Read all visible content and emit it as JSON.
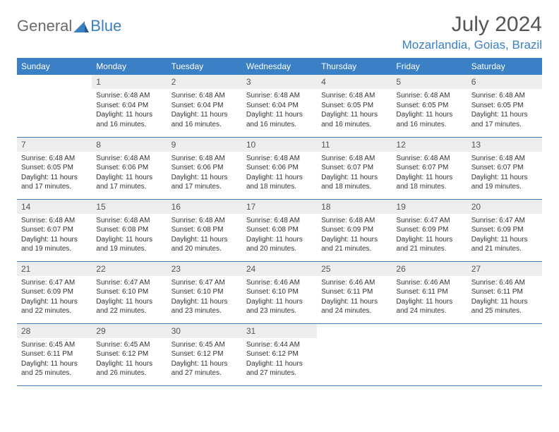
{
  "logo": {
    "text1": "General",
    "text2": "Blue"
  },
  "title": "July 2024",
  "location": "Mozarlandia, Goias, Brazil",
  "colors": {
    "header_bg": "#3b7fc4",
    "header_text": "#ffffff",
    "daynum_bg": "#eeeeee",
    "border": "#3b7fc4",
    "title_color": "#555555",
    "location_color": "#3b7fc4"
  },
  "weekdays": [
    "Sunday",
    "Monday",
    "Tuesday",
    "Wednesday",
    "Thursday",
    "Friday",
    "Saturday"
  ],
  "weeks": [
    [
      null,
      {
        "n": "1",
        "sr": "Sunrise: 6:48 AM",
        "ss": "Sunset: 6:04 PM",
        "dl": "Daylight: 11 hours and 16 minutes."
      },
      {
        "n": "2",
        "sr": "Sunrise: 6:48 AM",
        "ss": "Sunset: 6:04 PM",
        "dl": "Daylight: 11 hours and 16 minutes."
      },
      {
        "n": "3",
        "sr": "Sunrise: 6:48 AM",
        "ss": "Sunset: 6:04 PM",
        "dl": "Daylight: 11 hours and 16 minutes."
      },
      {
        "n": "4",
        "sr": "Sunrise: 6:48 AM",
        "ss": "Sunset: 6:05 PM",
        "dl": "Daylight: 11 hours and 16 minutes."
      },
      {
        "n": "5",
        "sr": "Sunrise: 6:48 AM",
        "ss": "Sunset: 6:05 PM",
        "dl": "Daylight: 11 hours and 16 minutes."
      },
      {
        "n": "6",
        "sr": "Sunrise: 6:48 AM",
        "ss": "Sunset: 6:05 PM",
        "dl": "Daylight: 11 hours and 17 minutes."
      }
    ],
    [
      {
        "n": "7",
        "sr": "Sunrise: 6:48 AM",
        "ss": "Sunset: 6:05 PM",
        "dl": "Daylight: 11 hours and 17 minutes."
      },
      {
        "n": "8",
        "sr": "Sunrise: 6:48 AM",
        "ss": "Sunset: 6:06 PM",
        "dl": "Daylight: 11 hours and 17 minutes."
      },
      {
        "n": "9",
        "sr": "Sunrise: 6:48 AM",
        "ss": "Sunset: 6:06 PM",
        "dl": "Daylight: 11 hours and 17 minutes."
      },
      {
        "n": "10",
        "sr": "Sunrise: 6:48 AM",
        "ss": "Sunset: 6:06 PM",
        "dl": "Daylight: 11 hours and 18 minutes."
      },
      {
        "n": "11",
        "sr": "Sunrise: 6:48 AM",
        "ss": "Sunset: 6:07 PM",
        "dl": "Daylight: 11 hours and 18 minutes."
      },
      {
        "n": "12",
        "sr": "Sunrise: 6:48 AM",
        "ss": "Sunset: 6:07 PM",
        "dl": "Daylight: 11 hours and 18 minutes."
      },
      {
        "n": "13",
        "sr": "Sunrise: 6:48 AM",
        "ss": "Sunset: 6:07 PM",
        "dl": "Daylight: 11 hours and 19 minutes."
      }
    ],
    [
      {
        "n": "14",
        "sr": "Sunrise: 6:48 AM",
        "ss": "Sunset: 6:07 PM",
        "dl": "Daylight: 11 hours and 19 minutes."
      },
      {
        "n": "15",
        "sr": "Sunrise: 6:48 AM",
        "ss": "Sunset: 6:08 PM",
        "dl": "Daylight: 11 hours and 19 minutes."
      },
      {
        "n": "16",
        "sr": "Sunrise: 6:48 AM",
        "ss": "Sunset: 6:08 PM",
        "dl": "Daylight: 11 hours and 20 minutes."
      },
      {
        "n": "17",
        "sr": "Sunrise: 6:48 AM",
        "ss": "Sunset: 6:08 PM",
        "dl": "Daylight: 11 hours and 20 minutes."
      },
      {
        "n": "18",
        "sr": "Sunrise: 6:48 AM",
        "ss": "Sunset: 6:09 PM",
        "dl": "Daylight: 11 hours and 21 minutes."
      },
      {
        "n": "19",
        "sr": "Sunrise: 6:47 AM",
        "ss": "Sunset: 6:09 PM",
        "dl": "Daylight: 11 hours and 21 minutes."
      },
      {
        "n": "20",
        "sr": "Sunrise: 6:47 AM",
        "ss": "Sunset: 6:09 PM",
        "dl": "Daylight: 11 hours and 21 minutes."
      }
    ],
    [
      {
        "n": "21",
        "sr": "Sunrise: 6:47 AM",
        "ss": "Sunset: 6:09 PM",
        "dl": "Daylight: 11 hours and 22 minutes."
      },
      {
        "n": "22",
        "sr": "Sunrise: 6:47 AM",
        "ss": "Sunset: 6:10 PM",
        "dl": "Daylight: 11 hours and 22 minutes."
      },
      {
        "n": "23",
        "sr": "Sunrise: 6:47 AM",
        "ss": "Sunset: 6:10 PM",
        "dl": "Daylight: 11 hours and 23 minutes."
      },
      {
        "n": "24",
        "sr": "Sunrise: 6:46 AM",
        "ss": "Sunset: 6:10 PM",
        "dl": "Daylight: 11 hours and 23 minutes."
      },
      {
        "n": "25",
        "sr": "Sunrise: 6:46 AM",
        "ss": "Sunset: 6:11 PM",
        "dl": "Daylight: 11 hours and 24 minutes."
      },
      {
        "n": "26",
        "sr": "Sunrise: 6:46 AM",
        "ss": "Sunset: 6:11 PM",
        "dl": "Daylight: 11 hours and 24 minutes."
      },
      {
        "n": "27",
        "sr": "Sunrise: 6:46 AM",
        "ss": "Sunset: 6:11 PM",
        "dl": "Daylight: 11 hours and 25 minutes."
      }
    ],
    [
      {
        "n": "28",
        "sr": "Sunrise: 6:45 AM",
        "ss": "Sunset: 6:11 PM",
        "dl": "Daylight: 11 hours and 25 minutes."
      },
      {
        "n": "29",
        "sr": "Sunrise: 6:45 AM",
        "ss": "Sunset: 6:12 PM",
        "dl": "Daylight: 11 hours and 26 minutes."
      },
      {
        "n": "30",
        "sr": "Sunrise: 6:45 AM",
        "ss": "Sunset: 6:12 PM",
        "dl": "Daylight: 11 hours and 27 minutes."
      },
      {
        "n": "31",
        "sr": "Sunrise: 6:44 AM",
        "ss": "Sunset: 6:12 PM",
        "dl": "Daylight: 11 hours and 27 minutes."
      },
      null,
      null,
      null
    ]
  ]
}
